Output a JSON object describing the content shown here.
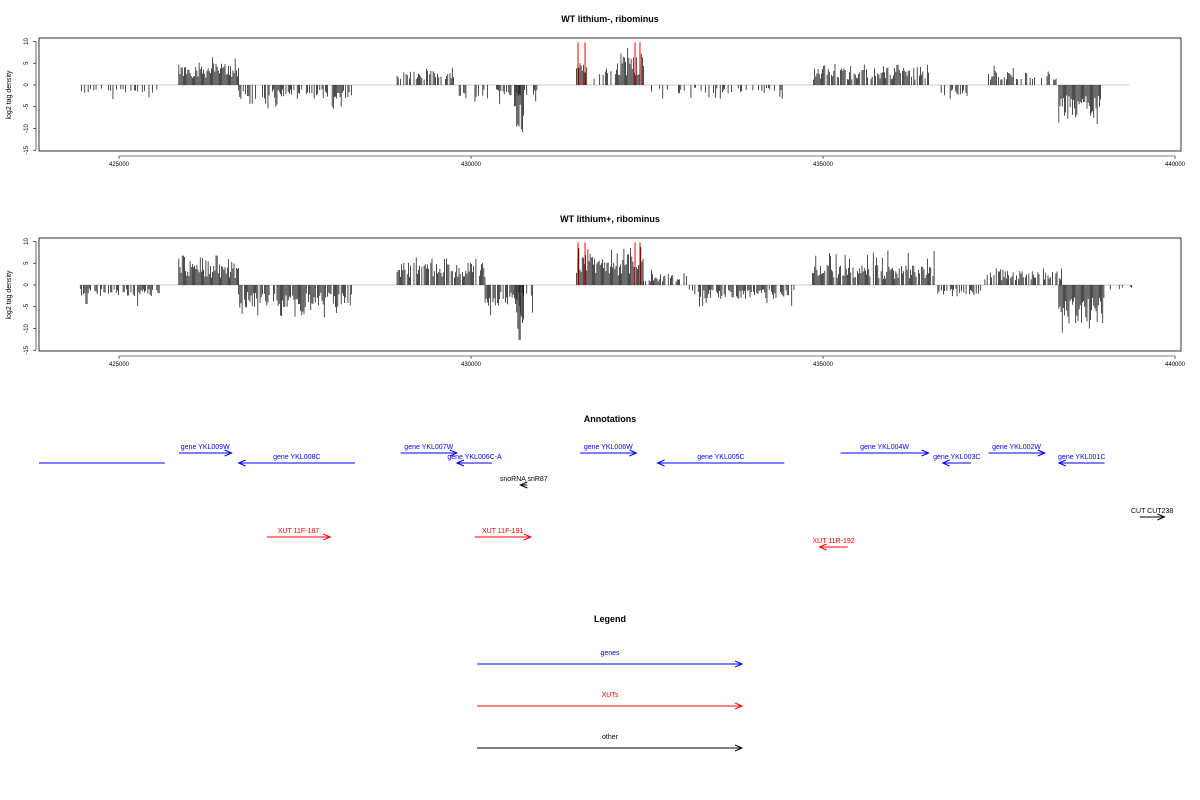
{
  "chart_data": [
    {
      "type": "bar",
      "title": "WT lithium-, ribominus",
      "ylabel": "log2 tag density",
      "xlabel": "",
      "xlim": [
        424000,
        440000
      ],
      "ylim": [
        -15,
        10
      ],
      "x_ticks": [
        425000,
        430000,
        435000,
        440000
      ],
      "y_ticks": [
        10,
        5,
        0,
        -5,
        -10,
        -15
      ],
      "bar_color": "#000000",
      "highlight_color": "#ff0000",
      "segments": [
        {
          "start": 424450,
          "end": 425600,
          "sign": -1,
          "level": 1.5,
          "max": 3.5,
          "density": 0.35
        },
        {
          "start": 425850,
          "end": 426700,
          "sign": 1,
          "level": 4,
          "max": 7.5,
          "density": 1
        },
        {
          "start": 426700,
          "end": 428300,
          "sign": -1,
          "level": 2.5,
          "max": 5.5,
          "density": 0.6
        },
        {
          "start": 428950,
          "end": 429750,
          "sign": 1,
          "level": 2.5,
          "max": 4.5,
          "density": 0.7
        },
        {
          "start": 429800,
          "end": 430950,
          "sign": -1,
          "level": 2.5,
          "max": 5,
          "density": 0.5
        },
        {
          "start": 430650,
          "end": 430750,
          "sign": -1,
          "level": 9,
          "max": 13.5,
          "density": 1
        },
        {
          "start": 431500,
          "end": 431650,
          "sign": 1,
          "level": 5,
          "max": 9.5,
          "density": 1
        },
        {
          "start": 431700,
          "end": 432000,
          "sign": 1,
          "level": 2.5,
          "max": 4,
          "density": 0.5
        },
        {
          "start": 432050,
          "end": 432450,
          "sign": 1,
          "level": 5,
          "max": 9.5,
          "density": 1
        },
        {
          "start": 432500,
          "end": 434450,
          "sign": -1,
          "level": 1.5,
          "max": 3.5,
          "density": 0.35
        },
        {
          "start": 434850,
          "end": 436550,
          "sign": 1,
          "level": 3,
          "max": 5,
          "density": 0.8
        },
        {
          "start": 436550,
          "end": 437050,
          "sign": -1,
          "level": 2,
          "max": 4,
          "density": 0.4
        },
        {
          "start": 437350,
          "end": 438350,
          "sign": 1,
          "level": 2.5,
          "max": 4.5,
          "density": 0.6
        },
        {
          "start": 438350,
          "end": 438950,
          "sign": -1,
          "level": 6,
          "max": 9,
          "density": 1
        }
      ],
      "highlights": [
        431520,
        431620,
        432330,
        432400
      ]
    },
    {
      "type": "bar",
      "title": "WT lithium+, ribominus",
      "ylabel": "log2 tag density",
      "xlabel": "",
      "xlim": [
        424000,
        440000
      ],
      "ylim": [
        -15,
        10
      ],
      "x_ticks": [
        425000,
        430000,
        435000,
        440000
      ],
      "y_ticks": [
        10,
        5,
        0,
        -5,
        -10,
        -15
      ],
      "bar_color": "#000000",
      "highlight_color": "#ff0000",
      "segments": [
        {
          "start": 424450,
          "end": 425600,
          "sign": -1,
          "level": 2,
          "max": 5,
          "density": 0.6
        },
        {
          "start": 425850,
          "end": 426700,
          "sign": 1,
          "level": 4,
          "max": 7,
          "density": 1
        },
        {
          "start": 426700,
          "end": 428300,
          "sign": -1,
          "level": 4,
          "max": 7.5,
          "density": 0.9
        },
        {
          "start": 428950,
          "end": 430200,
          "sign": 1,
          "level": 4,
          "max": 6.5,
          "density": 0.9
        },
        {
          "start": 430200,
          "end": 430950,
          "sign": -1,
          "level": 4,
          "max": 7,
          "density": 0.8
        },
        {
          "start": 430650,
          "end": 430750,
          "sign": -1,
          "level": 10,
          "max": 14,
          "density": 1
        },
        {
          "start": 431500,
          "end": 432450,
          "sign": 1,
          "level": 5.5,
          "max": 9.5,
          "density": 1
        },
        {
          "start": 432450,
          "end": 433100,
          "sign": 1,
          "level": 2,
          "max": 3.5,
          "density": 0.6
        },
        {
          "start": 433100,
          "end": 434600,
          "sign": -1,
          "level": 2.5,
          "max": 5,
          "density": 0.7
        },
        {
          "start": 434850,
          "end": 436600,
          "sign": 1,
          "level": 3.5,
          "max": 8,
          "density": 0.9
        },
        {
          "start": 436600,
          "end": 437300,
          "sign": -1,
          "level": 2,
          "max": 4,
          "density": 0.6
        },
        {
          "start": 437300,
          "end": 438400,
          "sign": 1,
          "level": 2.5,
          "max": 4,
          "density": 0.6
        },
        {
          "start": 438350,
          "end": 439000,
          "sign": -1,
          "level": 7,
          "max": 11,
          "density": 1
        },
        {
          "start": 439000,
          "end": 439400,
          "sign": -1,
          "level": 1,
          "max": 2,
          "density": 0.3
        }
      ],
      "highlights": [
        431520,
        431620,
        432330,
        432400
      ]
    }
  ],
  "annotations": {
    "title": "Annotations",
    "features": [
      {
        "label": "",
        "start": 424000,
        "end": 425650,
        "strand": "none",
        "type": "gene"
      },
      {
        "label": "gene YKL009W",
        "start": 425850,
        "end": 426600,
        "strand": "+",
        "type": "gene"
      },
      {
        "label": "gene YKL008C",
        "start": 426700,
        "end": 428350,
        "strand": "-",
        "type": "gene"
      },
      {
        "label": "gene YKL007W",
        "start": 429000,
        "end": 429800,
        "strand": "+",
        "type": "gene"
      },
      {
        "label": "gene YKL006C-A",
        "start": 429800,
        "end": 430300,
        "strand": "-",
        "type": "gene"
      },
      {
        "label": "snoRNA snR87",
        "start": 430700,
        "end": 430800,
        "strand": "-",
        "type": "other"
      },
      {
        "label": "gene YKL006W",
        "start": 431550,
        "end": 432350,
        "strand": "+",
        "type": "gene"
      },
      {
        "label": "gene YKL005C",
        "start": 432650,
        "end": 434450,
        "strand": "-",
        "type": "gene"
      },
      {
        "label": "gene YKL004W",
        "start": 435250,
        "end": 436500,
        "strand": "+",
        "type": "gene"
      },
      {
        "label": "gene YKL003C",
        "start": 436700,
        "end": 437100,
        "strand": "-",
        "type": "gene"
      },
      {
        "label": "gene YKL002W",
        "start": 437350,
        "end": 438150,
        "strand": "+",
        "type": "gene"
      },
      {
        "label": "gene YKL001C",
        "start": 438350,
        "end": 439000,
        "strand": "-",
        "type": "gene"
      },
      {
        "label": "CUT CUT238",
        "start": 439500,
        "end": 439850,
        "strand": "+",
        "type": "other"
      },
      {
        "label": "XUT 11F-187",
        "start": 427100,
        "end": 428000,
        "strand": "+",
        "type": "xut"
      },
      {
        "label": "XUT 11F-191",
        "start": 430050,
        "end": 430850,
        "strand": "+",
        "type": "xut"
      },
      {
        "label": "XUT 11R-192",
        "start": 434950,
        "end": 435350,
        "strand": "-",
        "type": "xut"
      }
    ]
  },
  "legend": {
    "title": "Legend",
    "items": [
      {
        "label": "genes",
        "type": "gene"
      },
      {
        "label": "XUTs",
        "type": "xut"
      },
      {
        "label": "other",
        "type": "other"
      }
    ]
  },
  "colors": {
    "gene": "#0000ff",
    "xut": "#ff0000",
    "other": "#000000",
    "axis": "#000000",
    "zero_line": "#999999"
  }
}
